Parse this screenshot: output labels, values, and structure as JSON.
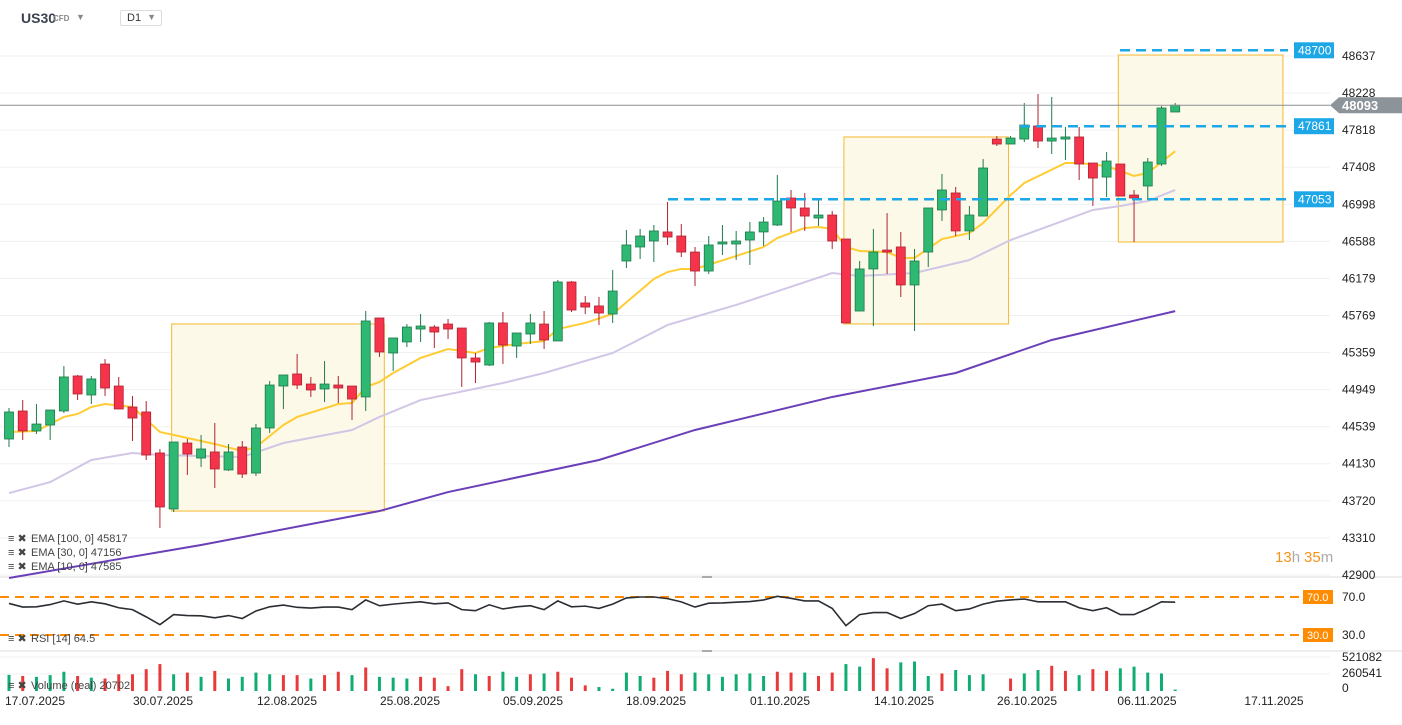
{
  "header": {
    "symbol": "US30",
    "instrument_type": "CFD",
    "timeframe": "D1"
  },
  "countdown": {
    "hours": "13",
    "h": "h",
    "minutes": "35",
    "m": "m"
  },
  "legends": {
    "ema100": "EMA [100, 0] 45817",
    "ema30": "EMA [30, 0] 47156",
    "ema10": "EMA [10, 0] 47585",
    "rsi": "RSI [14] 64.5",
    "volume": "Volume (real) 20702"
  },
  "colors": {
    "up": "#2eb872",
    "down": "#f5344c",
    "ema10": "#ffcc33",
    "ema30": "#d2c6e6",
    "ema100": "#6a3fb8",
    "levels": "#1ea7e6",
    "rsi_bands": "#ff8c00",
    "zones": "#f5b82e"
  },
  "chart_data": {
    "type": "candlestick",
    "symbol": "US30",
    "y_ticks": [
      48637,
      48228,
      47818,
      47408,
      46998,
      46588,
      46179,
      45769,
      45359,
      44949,
      44539,
      44130,
      43720,
      43310,
      42900
    ],
    "x_ticks": [
      "17.07.2025",
      "30.07.2025",
      "12.08.2025",
      "25.08.2025",
      "05.09.2025",
      "18.09.2025",
      "01.10.2025",
      "14.10.2025",
      "26.10.2025",
      "06.11.2025",
      "17.11.2025"
    ],
    "last_price": "48093",
    "levels": [
      "48700",
      "47861",
      "47053"
    ],
    "ohlc": [
      [
        44403,
        44746,
        44315,
        44702
      ],
      [
        44713,
        44834,
        44392,
        44492
      ],
      [
        44492,
        44790,
        44459,
        44569
      ],
      [
        44558,
        44724,
        44392,
        44724
      ],
      [
        44713,
        45210,
        44691,
        45089
      ],
      [
        45100,
        45111,
        44834,
        44901
      ],
      [
        44890,
        45100,
        44790,
        45067
      ],
      [
        45232,
        45287,
        44879,
        44967
      ],
      [
        44989,
        45089,
        44735,
        44735
      ],
      [
        44757,
        44879,
        44381,
        44635
      ],
      [
        44702,
        44823,
        44171,
        44226
      ],
      [
        44249,
        44293,
        43420,
        43652
      ],
      [
        43630,
        44370,
        43596,
        44370
      ],
      [
        44359,
        44403,
        44005,
        44237
      ],
      [
        44193,
        44448,
        44094,
        44293
      ],
      [
        44260,
        44580,
        43862,
        44072
      ],
      [
        44061,
        44348,
        44050,
        44260
      ],
      [
        44315,
        44381,
        43972,
        44016
      ],
      [
        44027,
        44569,
        43994,
        44525
      ],
      [
        44525,
        45045,
        44470,
        45000
      ],
      [
        44989,
        45111,
        44735,
        45111
      ],
      [
        45122,
        45343,
        44956,
        45000
      ],
      [
        45011,
        45089,
        44868,
        44945
      ],
      [
        44956,
        45265,
        44812,
        45011
      ],
      [
        45000,
        45100,
        44801,
        44967
      ],
      [
        44989,
        44989,
        44613,
        44845
      ],
      [
        44868,
        45818,
        44713,
        45708
      ],
      [
        45741,
        45741,
        45310,
        45365
      ],
      [
        45354,
        45520,
        45155,
        45520
      ],
      [
        45476,
        45674,
        45420,
        45641
      ],
      [
        45619,
        45785,
        45476,
        45652
      ],
      [
        45641,
        45663,
        45409,
        45586
      ],
      [
        45674,
        45730,
        45509,
        45619
      ],
      [
        45630,
        45630,
        44978,
        45299
      ],
      [
        45299,
        45354,
        45022,
        45254
      ],
      [
        45221,
        45697,
        45210,
        45686
      ],
      [
        45686,
        45807,
        45232,
        45442
      ],
      [
        45431,
        45575,
        45299,
        45575
      ],
      [
        45564,
        45785,
        45453,
        45686
      ],
      [
        45674,
        45818,
        45398,
        45498
      ],
      [
        45487,
        46161,
        45487,
        46139
      ],
      [
        46139,
        46150,
        45807,
        45829
      ],
      [
        45907,
        45984,
        45785,
        45862
      ],
      [
        45874,
        45973,
        45663,
        45796
      ],
      [
        45785,
        46271,
        45686,
        46039
      ],
      [
        46371,
        46714,
        46293,
        46548
      ],
      [
        46526,
        46725,
        46393,
        46647
      ],
      [
        46592,
        46769,
        46360,
        46703
      ],
      [
        46692,
        47023,
        46548,
        46636
      ],
      [
        46647,
        46780,
        46415,
        46470
      ],
      [
        46470,
        46526,
        46095,
        46260
      ],
      [
        46260,
        46647,
        46227,
        46548
      ],
      [
        46559,
        46769,
        46437,
        46581
      ],
      [
        46559,
        46703,
        46382,
        46592
      ],
      [
        46603,
        46802,
        46327,
        46692
      ],
      [
        46692,
        46857,
        46537,
        46802
      ],
      [
        46769,
        47322,
        46758,
        47034
      ],
      [
        47067,
        47156,
        46692,
        46957
      ],
      [
        46957,
        47123,
        46703,
        46868
      ],
      [
        46846,
        47067,
        46758,
        46879
      ],
      [
        46879,
        46924,
        46504,
        46592
      ],
      [
        46614,
        46614,
        45686,
        45686
      ],
      [
        45818,
        46371,
        45818,
        46283
      ],
      [
        46283,
        46725,
        45652,
        46470
      ],
      [
        46492,
        46901,
        46227,
        46470
      ],
      [
        46526,
        46692,
        45973,
        46106
      ],
      [
        46106,
        46504,
        45597,
        46371
      ],
      [
        46470,
        46957,
        46305,
        46957
      ],
      [
        46935,
        47333,
        46813,
        47156
      ],
      [
        47123,
        47189,
        46647,
        46703
      ],
      [
        46703,
        46979,
        46603,
        46879
      ],
      [
        46868,
        47498,
        46868,
        47399
      ],
      [
        47719,
        47753,
        47642,
        47664
      ],
      [
        47664,
        47753,
        47664,
        47730
      ],
      [
        47719,
        48117,
        47686,
        47874
      ],
      [
        47863,
        48217,
        47620,
        47697
      ],
      [
        47697,
        48184,
        47554,
        47730
      ],
      [
        47719,
        47852,
        47487,
        47742
      ],
      [
        47742,
        47852,
        47266,
        47443
      ],
      [
        47454,
        47454,
        46979,
        47288
      ],
      [
        47299,
        47576,
        47078,
        47476
      ],
      [
        47443,
        47443,
        47089,
        47089
      ],
      [
        47100,
        47156,
        46581,
        47067
      ],
      [
        47200,
        47509,
        47045,
        47465
      ],
      [
        47443,
        48084,
        47421,
        48062
      ],
      [
        48018,
        48117,
        48018,
        48093
      ]
    ],
    "ema10": [
      [
        0,
        44481
      ],
      [
        2,
        44492
      ],
      [
        4,
        44647
      ],
      [
        5,
        44680
      ],
      [
        6,
        44757
      ],
      [
        7,
        44790
      ],
      [
        9,
        44757
      ],
      [
        11,
        44481
      ],
      [
        13,
        44414
      ],
      [
        15,
        44348
      ],
      [
        17,
        44271
      ],
      [
        18,
        44315
      ],
      [
        20,
        44558
      ],
      [
        21,
        44647
      ],
      [
        24,
        44790
      ],
      [
        25,
        44801
      ],
      [
        26,
        44978
      ],
      [
        27,
        45033
      ],
      [
        28,
        45133
      ],
      [
        30,
        45299
      ],
      [
        32,
        45398
      ],
      [
        34,
        45354
      ],
      [
        35,
        45409
      ],
      [
        37,
        45453
      ],
      [
        39,
        45486
      ],
      [
        40,
        45619
      ],
      [
        42,
        45686
      ],
      [
        44,
        45785
      ],
      [
        47,
        46172
      ],
      [
        48,
        46249
      ],
      [
        49,
        46283
      ],
      [
        50,
        46283
      ],
      [
        53,
        46426
      ],
      [
        55,
        46526
      ],
      [
        56,
        46625
      ],
      [
        58,
        46736
      ],
      [
        59,
        46747
      ],
      [
        60,
        46725
      ],
      [
        61,
        46526
      ],
      [
        62,
        46481
      ],
      [
        64,
        46470
      ],
      [
        65,
        46404
      ],
      [
        66,
        46404
      ],
      [
        68,
        46614
      ],
      [
        70,
        46680
      ],
      [
        71,
        46791
      ],
      [
        73,
        47100
      ],
      [
        74,
        47233
      ],
      [
        77,
        47454
      ],
      [
        78,
        47454
      ],
      [
        80,
        47421
      ],
      [
        82,
        47311
      ],
      [
        83,
        47344
      ],
      [
        85,
        47585
      ]
    ],
    "ema30": [
      [
        0,
        43806
      ],
      [
        3,
        43927
      ],
      [
        6,
        44171
      ],
      [
        9,
        44249
      ],
      [
        11,
        44226
      ],
      [
        17,
        44204
      ],
      [
        20,
        44359
      ],
      [
        25,
        44503
      ],
      [
        27,
        44647
      ],
      [
        30,
        44834
      ],
      [
        36,
        45022
      ],
      [
        39,
        45133
      ],
      [
        44,
        45354
      ],
      [
        48,
        45664
      ],
      [
        53,
        45885
      ],
      [
        60,
        46238
      ],
      [
        62,
        46205
      ],
      [
        66,
        46238
      ],
      [
        70,
        46382
      ],
      [
        73,
        46603
      ],
      [
        79,
        46935
      ],
      [
        81,
        46979
      ],
      [
        83,
        47034
      ],
      [
        85,
        47156
      ]
    ],
    "ema100": [
      [
        0,
        42867
      ],
      [
        7,
        43050
      ],
      [
        14,
        43232
      ],
      [
        27,
        43607
      ],
      [
        32,
        43817
      ],
      [
        43,
        44171
      ],
      [
        50,
        44503
      ],
      [
        60,
        44868
      ],
      [
        69,
        45133
      ],
      [
        76,
        45498
      ],
      [
        85,
        45817
      ]
    ],
    "rsi": {
      "ticks": [
        "70.0",
        "30.0"
      ],
      "bands": [
        70,
        30
      ],
      "values": [
        63.2,
        59.4,
        59.7,
        62,
        65.9,
        62.5,
        64.9,
        62.8,
        58.7,
        56.7,
        49.1,
        40.9,
        51.5,
        50.5,
        50.2,
        48.1,
        50.5,
        47.4,
        55.3,
        59.7,
        61.5,
        59.1,
        58.4,
        59.4,
        59.4,
        56.7,
        66.9,
        60.8,
        62.5,
        63.8,
        64.9,
        62.8,
        63.8,
        56.7,
        55.6,
        61.8,
        57.4,
        59.7,
        60.8,
        56.7,
        65.9,
        59.7,
        60.4,
        58,
        62.5,
        69,
        70,
        70,
        68.3,
        64.9,
        59.4,
        63.5,
        63.8,
        64.5,
        65.2,
        66.9,
        70.7,
        68.6,
        65.9,
        65.9,
        58,
        39.9,
        51.5,
        53.6,
        53.6,
        47.4,
        52.6,
        60.8,
        62.5,
        55.6,
        57.4,
        62.5,
        65.6,
        66.9,
        67.9,
        64.9,
        64.9,
        64.9,
        58.7,
        55.6,
        58.7,
        51.5,
        51.5,
        57.7,
        64.9,
        64.5
      ]
    },
    "volume": {
      "ticks": [
        "521082",
        "260541",
        "0"
      ],
      "values": [
        247500,
        230100,
        217100,
        243200,
        295300,
        230100,
        204100,
        191000,
        256200,
        256200,
        334300,
        412500,
        256200,
        282200,
        217100,
        308300,
        191000,
        217100,
        282200,
        256200,
        243200,
        243200,
        191000,
        243200,
        295300,
        243200,
        360400,
        217100,
        204100,
        191000,
        217100,
        204100,
        73800,
        334300,
        256200,
        230100,
        295300,
        217100,
        256200,
        269200,
        295300,
        204100,
        86800,
        60800,
        34700,
        282200,
        230100,
        204100,
        308300,
        256200,
        282200,
        256200,
        217100,
        256200,
        269200,
        230100,
        295300,
        282200,
        282200,
        230100,
        282200,
        412500,
        373400,
        503700,
        347400,
        438500,
        451600,
        230100,
        269200,
        321300,
        243200,
        256200,
        0,
        191000,
        269200,
        321300,
        386400,
        308300,
        243200,
        334300,
        308300,
        347400,
        373400,
        282200,
        269200,
        21700
      ],
      "directions": "grgggrgrrrrrgrgrggggrrgrrgrgggrrrrgrggrgrrrggggrrrggggggrrgrrggrrgggrggggrgg rrgrrggg"
    }
  }
}
